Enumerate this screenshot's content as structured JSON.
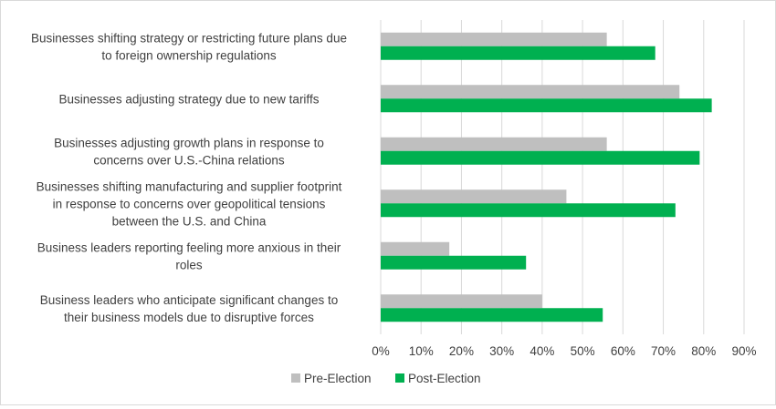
{
  "chart_data": {
    "type": "bar",
    "orientation": "horizontal",
    "title": "",
    "xlabel": "",
    "ylabel": "",
    "categories": [
      [
        "Businesses shifting strategy or restricting future plans due",
        "to foreign ownership regulations"
      ],
      [
        "Businesses adjusting strategy due to new tariffs"
      ],
      [
        "Businesses adjusting growth plans in response to",
        "concerns over U.S.-China relations"
      ],
      [
        "Businesses shifting manufacturing and supplier footprint",
        "in response to concerns over geopolitical tensions",
        "between the U.S. and China"
      ],
      [
        "Business leaders reporting feeling more anxious in their",
        "roles"
      ],
      [
        "Business leaders who anticipate significant changes to",
        "their business models due to disruptive forces"
      ]
    ],
    "series": [
      {
        "name": "Pre-Election",
        "color": "#bfbfbf",
        "values": [
          56,
          74,
          56,
          46,
          17,
          40
        ]
      },
      {
        "name": "Post-Election",
        "color": "#00b050",
        "values": [
          68,
          82,
          79,
          73,
          36,
          55
        ]
      }
    ],
    "xlim": [
      0,
      90
    ],
    "ticks": [
      0,
      10,
      20,
      30,
      40,
      50,
      60,
      70,
      80,
      90
    ],
    "tick_labels": [
      "0%",
      "10%",
      "20%",
      "30%",
      "40%",
      "50%",
      "60%",
      "70%",
      "80%",
      "90%"
    ],
    "grid": true,
    "legend": "bottom"
  }
}
